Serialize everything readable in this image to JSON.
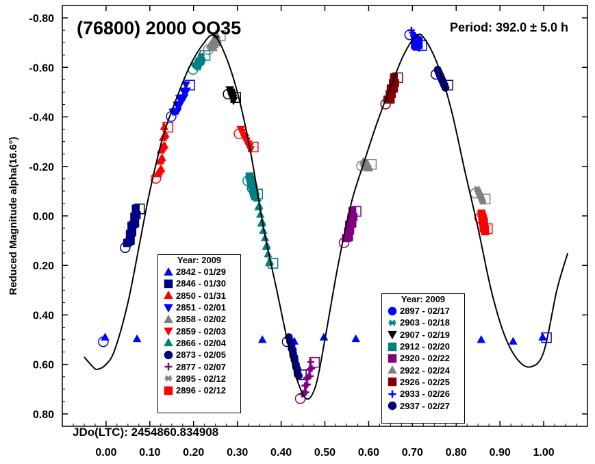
{
  "chart_data": {
    "type": "scatter",
    "title": "(76800) 2000 OQ35",
    "period_label": "Period: 392.0 ± 5.0 h",
    "jd_label": "JDo(LTC): 2454860.834908",
    "ylabel": "Reduced Magnitude alpha(16.6°)",
    "xlabel": "",
    "xlim": [
      -0.1,
      1.1
    ],
    "ylim": [
      0.85,
      -0.85
    ],
    "x_ticks": [
      "0.00",
      "0.10",
      "0.20",
      "0.30",
      "0.40",
      "0.50",
      "0.60",
      "0.70",
      "0.80",
      "0.90",
      "1.00"
    ],
    "y_ticks": [
      "-0.80",
      "-0.60",
      "-0.40",
      "-0.20",
      "0.00",
      "0.20",
      "0.40",
      "0.60",
      "0.80"
    ],
    "fit_curve": {
      "color": "#000000",
      "points": [
        [
          -0.05,
          0.57
        ],
        [
          -0.03,
          0.61
        ],
        [
          -0.02,
          0.62
        ],
        [
          0.0,
          0.6
        ],
        [
          0.02,
          0.54
        ],
        [
          0.05,
          0.35
        ],
        [
          0.08,
          0.08
        ],
        [
          0.1,
          -0.1
        ],
        [
          0.13,
          -0.32
        ],
        [
          0.16,
          -0.47
        ],
        [
          0.19,
          -0.6
        ],
        [
          0.22,
          -0.69
        ],
        [
          0.245,
          -0.73
        ],
        [
          0.27,
          -0.66
        ],
        [
          0.3,
          -0.5
        ],
        [
          0.33,
          -0.26
        ],
        [
          0.36,
          0.05
        ],
        [
          0.39,
          0.3
        ],
        [
          0.42,
          0.55
        ],
        [
          0.44,
          0.68
        ],
        [
          0.46,
          0.74
        ],
        [
          0.48,
          0.68
        ],
        [
          0.5,
          0.5
        ],
        [
          0.53,
          0.2
        ],
        [
          0.56,
          -0.05
        ],
        [
          0.59,
          -0.22
        ],
        [
          0.62,
          -0.38
        ],
        [
          0.65,
          -0.52
        ],
        [
          0.68,
          -0.65
        ],
        [
          0.71,
          -0.73
        ],
        [
          0.73,
          -0.71
        ],
        [
          0.76,
          -0.6
        ],
        [
          0.79,
          -0.42
        ],
        [
          0.82,
          -0.18
        ],
        [
          0.85,
          0.05
        ],
        [
          0.88,
          0.3
        ],
        [
          0.91,
          0.48
        ],
        [
          0.94,
          0.58
        ],
        [
          0.97,
          0.61
        ],
        [
          1.0,
          0.55
        ],
        [
          1.03,
          0.3
        ],
        [
          1.055,
          0.15
        ]
      ]
    },
    "series": [
      {
        "name": "2842 - 01/29",
        "marker": "triangle-up",
        "color": "#0000ff",
        "x": [
          0.0,
          1.0
        ],
        "y": [
          0.5,
          0.5
        ]
      },
      {
        "name": "2846 - 01/30",
        "marker": "square",
        "color": "#000080",
        "x": [
          0.05,
          0.07
        ],
        "y": [
          0.12,
          -0.02
        ]
      },
      {
        "name": "2850 - 01/31",
        "marker": "triangle-up",
        "color": "#ff0000",
        "x": [
          0.12,
          0.135
        ],
        "y": [
          -0.16,
          -0.35
        ]
      },
      {
        "name": "2851 - 02/01",
        "marker": "triangle-down",
        "color": "#0000ff",
        "x": [
          0.155,
          0.185
        ],
        "y": [
          -0.41,
          -0.52
        ]
      },
      {
        "name": "2858 - 02/02",
        "marker": "triangle-up",
        "color": "#808080",
        "x": [
          0.24,
          0.255
        ],
        "y": [
          -0.68,
          -0.72
        ]
      },
      {
        "name": "2859 - 02/03",
        "marker": "triangle-down",
        "color": "#ff0000",
        "x": [
          0.31,
          0.33
        ],
        "y": [
          -0.34,
          -0.27
        ]
      },
      {
        "name": "2866 - 02/04",
        "marker": "triangle-up",
        "color": "#008080",
        "x": [
          0.34,
          0.375
        ],
        "y": [
          -0.12,
          0.2
        ]
      },
      {
        "name": "2873 - 02/05",
        "marker": "circle",
        "color": "#000080",
        "x": [
          0.42,
          0.44
        ],
        "y": [
          0.5,
          0.65
        ]
      },
      {
        "name": "2877 - 02/07",
        "marker": "plus",
        "color": "#800080",
        "x": [
          0.45,
          0.47
        ],
        "y": [
          0.73,
          0.6
        ]
      },
      {
        "name": "2895 - 02/12",
        "marker": "asterisk",
        "color": "#808080",
        "x": [
          0.85,
          0.86
        ],
        "y": [
          -0.1,
          -0.06
        ]
      },
      {
        "name": "2896 - 02/12",
        "marker": "square",
        "color": "#ff0000",
        "x": [
          0.86,
          0.865
        ],
        "y": [
          0.0,
          0.06
        ]
      },
      {
        "name": "2897 - 02/17",
        "marker": "circle",
        "color": "#0000ff",
        "x": [
          0.71
        ],
        "y": [
          -0.7
        ]
      },
      {
        "name": "2903 - 02/18",
        "marker": "asterisk",
        "color": "#008080",
        "x": [
          0.205,
          0.22
        ],
        "y": [
          -0.6,
          -0.64
        ]
      },
      {
        "name": "2907 - 02/19",
        "marker": "triangle-down",
        "color": "#000000",
        "x": [
          0.285,
          0.29
        ],
        "y": [
          -0.5,
          -0.47
        ]
      },
      {
        "name": "2912 - 02/20",
        "marker": "square",
        "color": "#008080",
        "x": [
          0.33,
          0.34
        ],
        "y": [
          -0.15,
          -0.08
        ]
      },
      {
        "name": "2920 - 02/22",
        "marker": "square",
        "color": "#800080",
        "x": [
          0.55,
          0.565
        ],
        "y": [
          0.1,
          -0.01
        ]
      },
      {
        "name": "2922 - 02/24",
        "marker": "triangle-up",
        "color": "#808080",
        "x": [
          0.59,
          0.6
        ],
        "y": [
          -0.21,
          -0.2
        ]
      },
      {
        "name": "2926 - 02/25",
        "marker": "square",
        "color": "#800000",
        "x": [
          0.645,
          0.66
        ],
        "y": [
          -0.46,
          -0.55
        ]
      },
      {
        "name": "2933 - 02/26",
        "marker": "plus",
        "color": "#0000ff",
        "x": [
          0.7,
          0.715
        ],
        "y": [
          -0.74,
          -0.68
        ]
      },
      {
        "name": "2937 - 02/27",
        "marker": "circle",
        "color": "#000080",
        "x": [
          0.76,
          0.775
        ],
        "y": [
          -0.58,
          -0.52
        ]
      }
    ],
    "legend_left": {
      "title": "Year: 2009",
      "items": [
        {
          "label": "2842 - 01/29",
          "marker": "triangle-up",
          "color": "#0000ff"
        },
        {
          "label": "2846 - 01/30",
          "marker": "square",
          "color": "#000080"
        },
        {
          "label": "2850 - 01/31",
          "marker": "triangle-up",
          "color": "#ff0000"
        },
        {
          "label": "2851 - 02/01",
          "marker": "triangle-down",
          "color": "#0000ff"
        },
        {
          "label": "2858 - 02/02",
          "marker": "triangle-up",
          "color": "#808080"
        },
        {
          "label": "2859 - 02/03",
          "marker": "triangle-down",
          "color": "#ff0000"
        },
        {
          "label": "2866 - 02/04",
          "marker": "triangle-up",
          "color": "#008080"
        },
        {
          "label": "2873 - 02/05",
          "marker": "circle",
          "color": "#000080"
        },
        {
          "label": "2877 - 02/07",
          "marker": "plus",
          "color": "#800080"
        },
        {
          "label": "2895 - 02/12",
          "marker": "asterisk",
          "color": "#808080"
        },
        {
          "label": "2896 - 02/12",
          "marker": "square",
          "color": "#ff0000"
        }
      ]
    },
    "legend_right": {
      "title": "Year: 2009",
      "items": [
        {
          "label": "2897 - 02/17",
          "marker": "circle",
          "color": "#0000ff"
        },
        {
          "label": "2903 - 02/18",
          "marker": "asterisk",
          "color": "#008080"
        },
        {
          "label": "2907 - 02/19",
          "marker": "triangle-down",
          "color": "#000000"
        },
        {
          "label": "2912 - 02/20",
          "marker": "square",
          "color": "#008080"
        },
        {
          "label": "2920 - 02/22",
          "marker": "square",
          "color": "#800080"
        },
        {
          "label": "2922 - 02/24",
          "marker": "triangle-up",
          "color": "#808080"
        },
        {
          "label": "2926 - 02/25",
          "marker": "square",
          "color": "#800000"
        },
        {
          "label": "2933 - 02/26",
          "marker": "plus",
          "color": "#0000ff"
        },
        {
          "label": "2937 - 02/27",
          "marker": "circle",
          "color": "#000080"
        }
      ]
    },
    "grid": false
  }
}
